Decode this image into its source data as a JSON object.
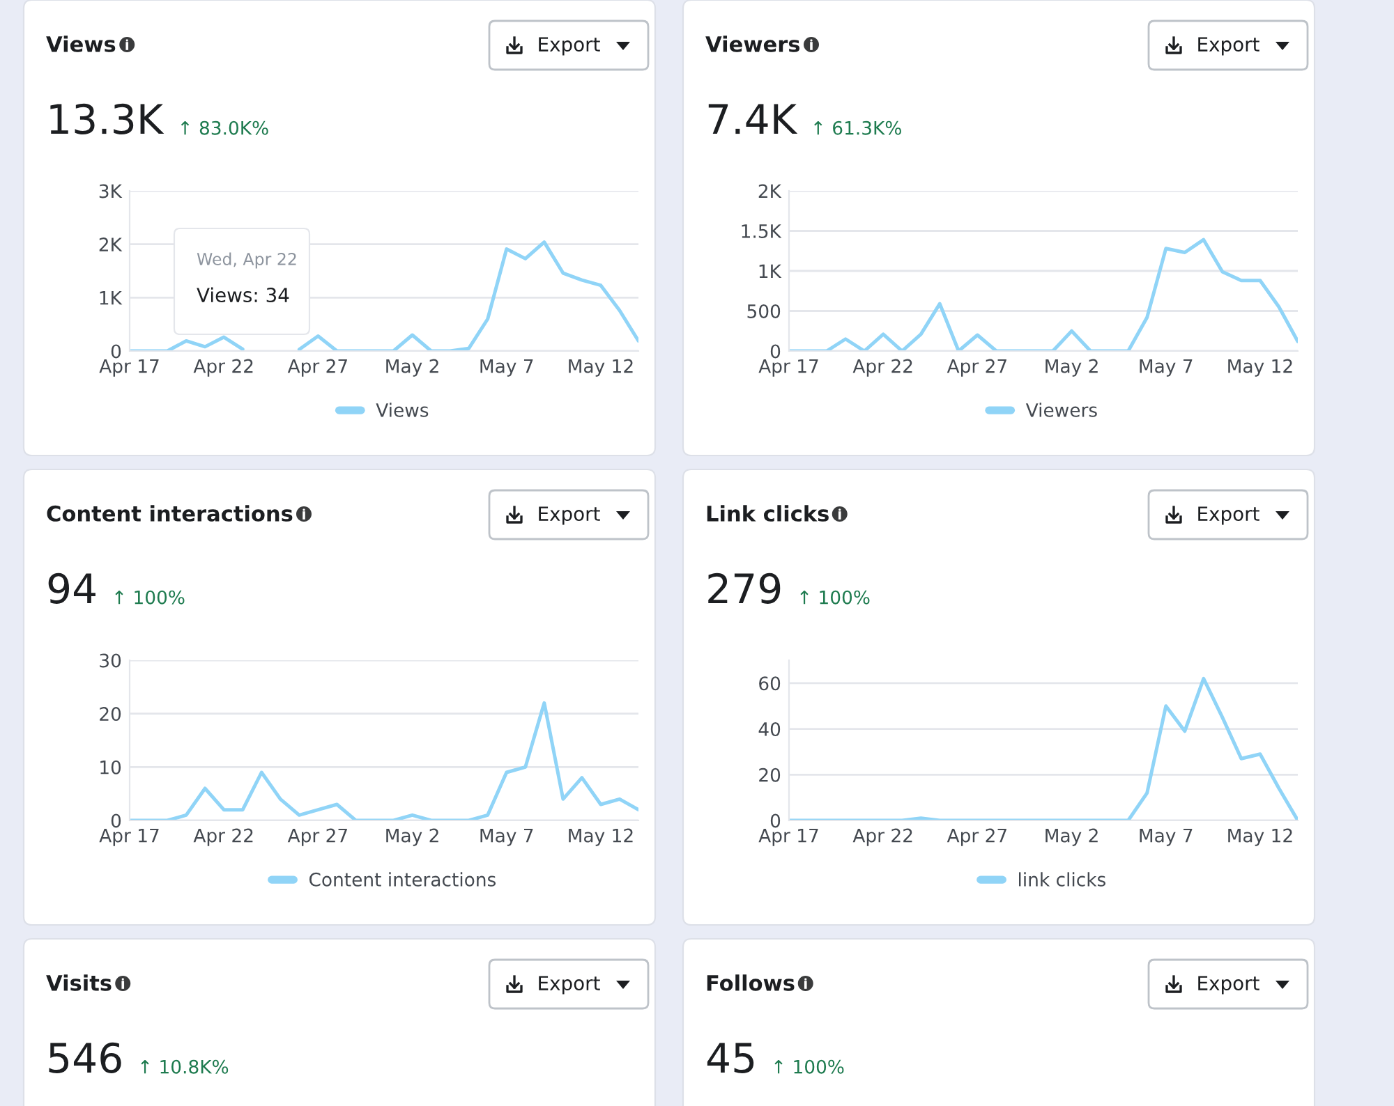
{
  "chart_data": [
    {
      "type": "line",
      "title": "Views",
      "annotations": [
        "13.3K",
        "↑ 83.0K%",
        "Export",
        "Wed, Apr 22",
        "Views: 34"
      ],
      "categories": [
        "Apr 17",
        null,
        null,
        null,
        null,
        "Apr 22",
        null,
        null,
        null,
        null,
        "Apr 27",
        null,
        null,
        null,
        null,
        "May 2",
        null,
        null,
        null,
        null,
        "May 7",
        null,
        null,
        null,
        null,
        "May 12",
        null,
        null
      ],
      "series": [
        {
          "name": "Views",
          "color": "#90d4f7",
          "values": [
            0,
            0,
            0,
            190,
            80,
            260,
            34,
            null,
            null,
            30,
            280,
            0,
            0,
            0,
            0,
            300,
            0,
            0,
            50,
            600,
            1910,
            1730,
            2040,
            1460,
            1330,
            1230,
            760,
            190
          ]
        }
      ],
      "ylim": [
        0,
        3000
      ],
      "yticks": [
        0,
        {
          "value": 1000,
          "label": "1K"
        },
        {
          "value": 2000,
          "label": "2K"
        },
        {
          "value": 3000,
          "label": "3K"
        }
      ],
      "grid": "y",
      "legend": "bottom"
    },
    {
      "type": "line",
      "title": "Viewers",
      "annotations": [
        "7.4K",
        "↑ 61.3K%",
        "Export"
      ],
      "categories": [
        "Apr 17",
        null,
        null,
        null,
        null,
        "Apr 22",
        null,
        null,
        null,
        null,
        "Apr 27",
        null,
        null,
        null,
        null,
        "May 2",
        null,
        null,
        null,
        null,
        "May 7",
        null,
        null,
        null,
        null,
        "May 12",
        null,
        null
      ],
      "series": [
        {
          "name": "Viewers",
          "color": "#90d4f7",
          "values": [
            0,
            0,
            0,
            150,
            0,
            210,
            0,
            210,
            590,
            0,
            200,
            0,
            0,
            0,
            0,
            250,
            0,
            0,
            0,
            420,
            1280,
            1230,
            1390,
            990,
            880,
            880,
            550,
            120
          ]
        }
      ],
      "ylim": [
        0,
        2000
      ],
      "yticks": [
        0,
        500,
        {
          "value": 1000,
          "label": "1K"
        },
        {
          "value": 1500,
          "label": "1.5K"
        },
        {
          "value": 2000,
          "label": "2K"
        }
      ],
      "grid": "y",
      "legend": "bottom"
    },
    {
      "type": "line",
      "title": "Content interactions",
      "annotations": [
        "94",
        "↑ 100%",
        "Export"
      ],
      "categories": [
        "Apr 17",
        null,
        null,
        null,
        null,
        "Apr 22",
        null,
        null,
        null,
        null,
        "Apr 27",
        null,
        null,
        null,
        null,
        "May 2",
        null,
        null,
        null,
        null,
        "May 7",
        null,
        null,
        null,
        null,
        "May 12",
        null,
        null
      ],
      "series": [
        {
          "name": "Content interactions",
          "color": "#90d4f7",
          "values": [
            0,
            0,
            0,
            1,
            6,
            2,
            2,
            9,
            4,
            1,
            2,
            3,
            0,
            0,
            0,
            1,
            0,
            0,
            0,
            1,
            9,
            10,
            22,
            4,
            8,
            3,
            4,
            2
          ]
        }
      ],
      "ylim": [
        0,
        30
      ],
      "yticks": [
        0,
        10,
        20,
        30
      ],
      "grid": "y",
      "legend": "bottom"
    },
    {
      "type": "line",
      "title": "Link clicks",
      "annotations": [
        "279",
        "↑ 100%",
        "Export"
      ],
      "categories": [
        "Apr 17",
        null,
        null,
        null,
        null,
        "Apr 22",
        null,
        null,
        null,
        null,
        "Apr 27",
        null,
        null,
        null,
        null,
        "May 2",
        null,
        null,
        null,
        null,
        "May 7",
        null,
        null,
        null,
        null,
        "May 12",
        null,
        null
      ],
      "series": [
        {
          "name": "link clicks",
          "color": "#90d4f7",
          "values": [
            0,
            0,
            0,
            0,
            0,
            0,
            0,
            1,
            0,
            0,
            0,
            0,
            0,
            0,
            0,
            0,
            0,
            0,
            0,
            12,
            50,
            39,
            62,
            45,
            27,
            29,
            14,
            0
          ]
        }
      ],
      "ylim": [
        0,
        70
      ],
      "yticks": [
        0,
        20,
        40,
        60
      ],
      "grid": "y",
      "legend": "bottom"
    },
    {
      "type": "other",
      "title": "Visits",
      "annotations": [
        "546",
        "↑ 10.8K%",
        "Export"
      ]
    },
    {
      "type": "other",
      "title": "Follows",
      "annotations": [
        "45",
        "↑ 100%",
        "Export"
      ]
    }
  ]
}
